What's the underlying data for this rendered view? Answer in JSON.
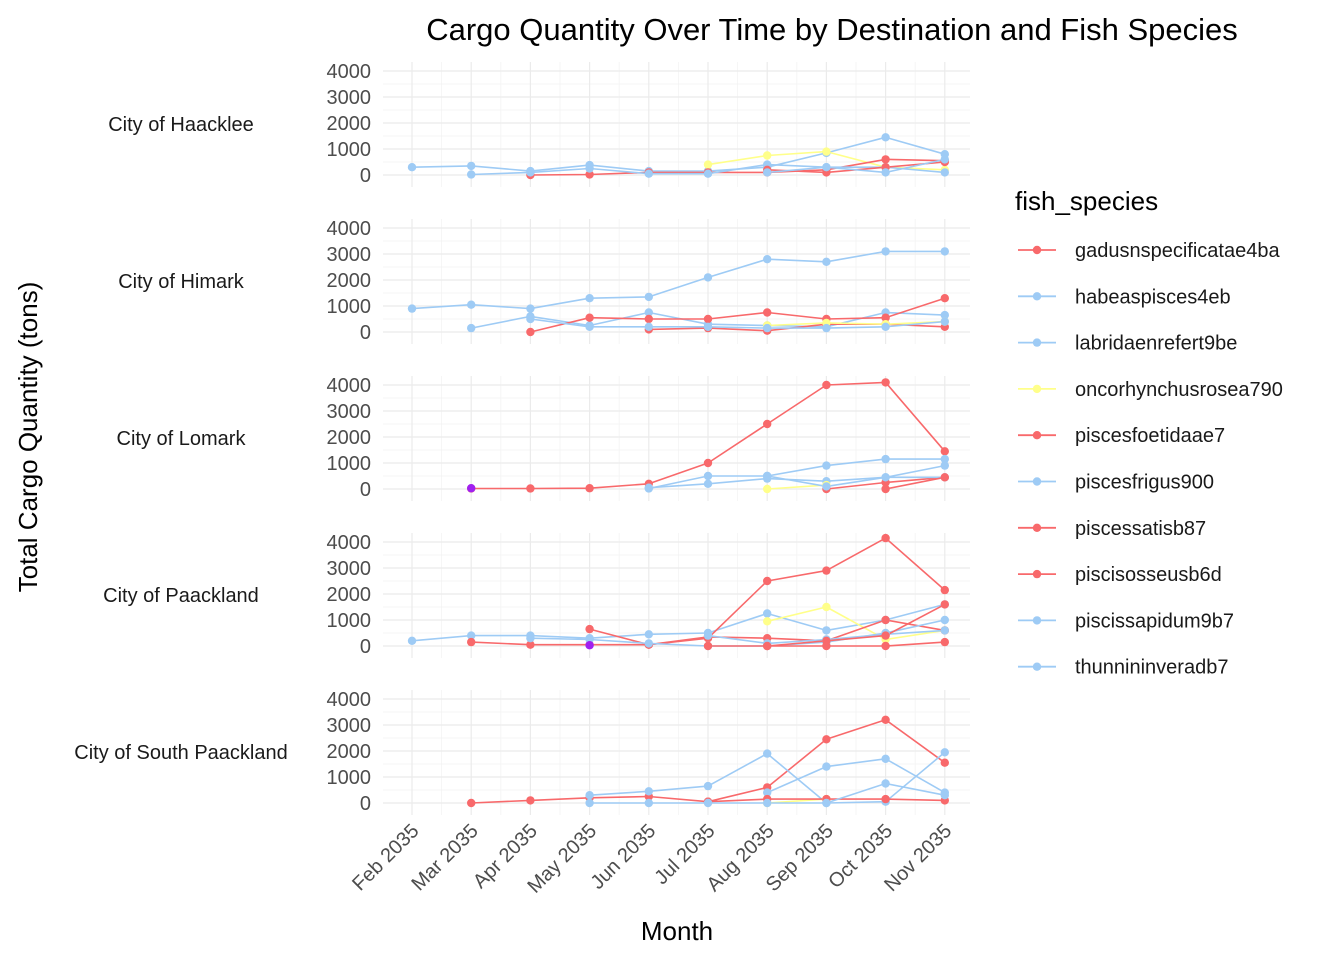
{
  "chart_data": {
    "type": "line",
    "title": "Cargo Quantity Over Time by Destination and Fish Species",
    "xlabel": "Month",
    "ylabel": "Total Cargo Quantity (tons)",
    "legend_title": "fish_species",
    "legend_position": "right",
    "months": [
      "Feb 2035",
      "Mar 2035",
      "Apr 2035",
      "May 2035",
      "Jun 2035",
      "Jul 2035",
      "Aug 2035",
      "Sep 2035",
      "Oct 2035",
      "Nov 2035"
    ],
    "y_ticks": [
      "0",
      "1000",
      "2000",
      "3000",
      "4000"
    ],
    "ylim": [
      0,
      4300
    ],
    "species": [
      {
        "name": "gadusnspecificatae4ba",
        "color": "#f8696b"
      },
      {
        "name": "habeaspisces4eb",
        "color": "#9ecbf5"
      },
      {
        "name": "labridaenrefert9be",
        "color": "#9ecbf5"
      },
      {
        "name": "oncorhynchusrosea790",
        "color": "#ffff8a"
      },
      {
        "name": "piscesfoetidaae7",
        "color": "#f8696b"
      },
      {
        "name": "piscesfrigus900",
        "color": "#9ecbf5"
      },
      {
        "name": "piscessatisb87",
        "color": "#f8696b"
      },
      {
        "name": "piscisosseusb6d",
        "color": "#f8696b"
      },
      {
        "name": "piscissapidum9b7",
        "color": "#9ecbf5"
      },
      {
        "name": "thunnininveradb7",
        "color": "#9ecbf5"
      }
    ],
    "facets": [
      {
        "name": "City of Haacklee",
        "series": [
          {
            "species": "habeaspisces4eb",
            "x": [
              0,
              1,
              2,
              3,
              4,
              5,
              6,
              7,
              8,
              9
            ],
            "y": [
              300,
              350,
              150,
              380,
              150,
              150,
              300,
              850,
              1450,
              800
            ]
          },
          {
            "species": "oncorhynchusrosea790",
            "x": [
              5,
              6,
              7,
              8,
              9
            ],
            "y": [
              400,
              750,
              900,
              300,
              200
            ]
          },
          {
            "species": "gadusnspecificatae4ba",
            "x": [
              2,
              3,
              4,
              5,
              6,
              7,
              8,
              9
            ],
            "y": [
              0,
              20,
              100,
              100,
              100,
              200,
              600,
              550
            ]
          },
          {
            "species": "piscesfrigus900",
            "x": [
              1,
              2,
              3,
              4,
              5,
              6,
              7,
              8,
              9
            ],
            "y": [
              20,
              100,
              250,
              50,
              50,
              400,
              300,
              300,
              100
            ]
          },
          {
            "species": "piscesfoetidaae7",
            "x": [
              6,
              7,
              8,
              9
            ],
            "y": [
              200,
              100,
              300,
              500
            ]
          },
          {
            "species": "piscissapidum9b7",
            "x": [
              6,
              7,
              8,
              9
            ],
            "y": [
              100,
              300,
              100,
              600
            ]
          }
        ]
      },
      {
        "name": "City of Himark",
        "series": [
          {
            "species": "habeaspisces4eb",
            "x": [
              0,
              1,
              2,
              3,
              4,
              5,
              6,
              7,
              8,
              9
            ],
            "y": [
              900,
              1050,
              900,
              1300,
              1350,
              2100,
              2800,
              2700,
              3100,
              3100
            ]
          },
          {
            "species": "labridaenrefert9be",
            "x": [
              1,
              2,
              3,
              4,
              5,
              6,
              7,
              8,
              9
            ],
            "y": [
              150,
              600,
              250,
              750,
              300,
              250,
              200,
              750,
              650
            ]
          },
          {
            "species": "gadusnspecificatae4ba",
            "x": [
              2,
              3,
              4,
              5,
              6,
              7,
              8,
              9
            ],
            "y": [
              0,
              550,
              500,
              500,
              750,
              500,
              550,
              1300
            ]
          },
          {
            "species": "piscesfoetidaae7",
            "x": [
              4,
              5,
              6,
              7,
              8,
              9
            ],
            "y": [
              100,
              150,
              50,
              300,
              300,
              200
            ]
          },
          {
            "species": "oncorhynchusrosea790",
            "x": [
              6,
              7,
              8,
              9
            ],
            "y": [
              250,
              350,
              300,
              400
            ]
          },
          {
            "species": "piscesfrigus900",
            "x": [
              2,
              3,
              4,
              5,
              6,
              7,
              8,
              9
            ],
            "y": [
              500,
              200,
              200,
              200,
              150,
              150,
              200,
              400
            ]
          }
        ]
      },
      {
        "name": "City of Lomark",
        "series": [
          {
            "species": "gadusnspecificatae4ba",
            "x": [
              1,
              2,
              3,
              4,
              5,
              6,
              7,
              8,
              9
            ],
            "y": [
              20,
              20,
              30,
              200,
              1000,
              2500,
              4000,
              4100,
              1450
            ]
          },
          {
            "species": "habeaspisces4eb",
            "x": [
              4,
              5,
              6,
              7,
              8,
              9
            ],
            "y": [
              20,
              500,
              500,
              900,
              1150,
              1150
            ]
          },
          {
            "species": "piscesfrigus900",
            "x": [
              4,
              5,
              6,
              7,
              8,
              9
            ],
            "y": [
              50,
              200,
              400,
              300,
              450,
              900
            ]
          },
          {
            "species": "piscesfoetidaae7",
            "x": [
              7,
              8,
              9
            ],
            "y": [
              0,
              250,
              450
            ]
          },
          {
            "species": "oncorhynchusrosea790",
            "x": [
              6,
              7
            ],
            "y": [
              0,
              150
            ]
          },
          {
            "species": "piscissapidum9b7",
            "x": [
              6,
              7,
              8,
              9
            ],
            "y": [
              500,
              100,
              450,
              450
            ]
          },
          {
            "species": "piscessatisb87",
            "x": [
              8,
              9
            ],
            "y": [
              0,
              450
            ]
          }
        ]
      },
      {
        "name": "City of Paackland",
        "series": [
          {
            "species": "habeaspisces4eb",
            "x": [
              0,
              1,
              2,
              3,
              4,
              5,
              6,
              7,
              8,
              9
            ],
            "y": [
              200,
              400,
              400,
              300,
              450,
              500,
              1250,
              600,
              1000,
              1600
            ]
          },
          {
            "species": "gadusnspecificatae4ba",
            "x": [
              1,
              2,
              3,
              4,
              5,
              6,
              7,
              8,
              9
            ],
            "y": [
              150,
              50,
              50,
              50,
              300,
              2500,
              2900,
              4150,
              2150
            ]
          },
          {
            "species": "oncorhynchusrosea790",
            "x": [
              6,
              7,
              8,
              9
            ],
            "y": [
              950,
              1500,
              250,
              600
            ]
          },
          {
            "species": "piscesfoetidaae7",
            "x": [
              3,
              4,
              5,
              6,
              7,
              8,
              9
            ],
            "y": [
              650,
              50,
              350,
              300,
              200,
              1000,
              600
            ]
          },
          {
            "species": "piscesfrigus900",
            "x": [
              2,
              3,
              4,
              5,
              6,
              7,
              8,
              9
            ],
            "y": [
              300,
              250,
              100,
              0,
              0,
              150,
              500,
              1000
            ]
          },
          {
            "species": "piscessatisb87",
            "x": [
              5,
              6,
              7,
              8,
              9
            ],
            "y": [
              0,
              0,
              0,
              0,
              150
            ]
          },
          {
            "species": "piscissapidum9b7",
            "x": [
              5,
              6,
              7,
              8,
              9
            ],
            "y": [
              400,
              100,
              250,
              450,
              600
            ]
          },
          {
            "species": "piscisosseusb6d",
            "x": [
              6,
              7,
              8,
              9
            ],
            "y": [
              0,
              200,
              400,
              1600
            ]
          }
        ]
      },
      {
        "name": "City of South Paackland",
        "series": [
          {
            "species": "gadusnspecificatae4ba",
            "x": [
              1,
              2,
              3,
              4,
              5,
              6,
              7,
              8,
              9
            ],
            "y": [
              0,
              100,
              200,
              250,
              50,
              600,
              2450,
              3200,
              1550
            ]
          },
          {
            "species": "habeaspisces4eb",
            "x": [
              3,
              4,
              5,
              6,
              7,
              8,
              9
            ],
            "y": [
              300,
              450,
              650,
              1900,
              0,
              50,
              1950
            ]
          },
          {
            "species": "piscesfrigus900",
            "x": [
              6,
              7,
              8,
              9
            ],
            "y": [
              400,
              1400,
              1700,
              400
            ]
          },
          {
            "species": "oncorhynchusrosea790",
            "x": [
              6,
              7
            ],
            "y": [
              0,
              150
            ]
          },
          {
            "species": "piscessatisb87",
            "x": [
              5,
              6,
              7,
              8,
              9
            ],
            "y": [
              50,
              150,
              150,
              150,
              100
            ]
          },
          {
            "species": "piscissapidum9b7",
            "x": [
              3,
              4,
              5,
              6,
              7,
              8,
              9
            ],
            "y": [
              0,
              0,
              0,
              0,
              0,
              750,
              300
            ]
          }
        ]
      }
    ],
    "special_points": [
      {
        "facet": 2,
        "x": 1,
        "y": 30,
        "color": "#a020f0"
      },
      {
        "facet": 3,
        "x": 3,
        "y": 30,
        "color": "#a020f0"
      }
    ]
  }
}
